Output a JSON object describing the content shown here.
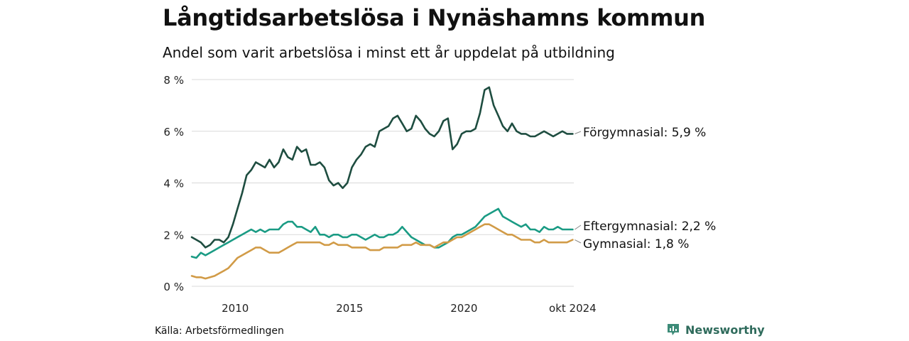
{
  "title": "Långtidsarbetslösa i Nynäshamns kommun",
  "subtitle": "Andel som varit arbetslösa i minst ett år uppdelat på utbildning",
  "source": "Källa: Arbetsförmedlingen",
  "brand": "Newsworthy",
  "chart_data": {
    "type": "line",
    "title": "Långtidsarbetslösa i Nynäshamns kommun",
    "ylabel": "",
    "xlabel": "",
    "xlim": [
      2008.1,
      2024.8
    ],
    "ylim": [
      0,
      8
    ],
    "y_ticks": [
      {
        "value": 0,
        "label": "0 %"
      },
      {
        "value": 2,
        "label": "2 %"
      },
      {
        "value": 4,
        "label": "4 %"
      },
      {
        "value": 6,
        "label": "6 %"
      },
      {
        "value": 8,
        "label": "8 %"
      }
    ],
    "x_ticks": [
      {
        "value": 2010,
        "label": "2010"
      },
      {
        "value": 2015,
        "label": "2015"
      },
      {
        "value": 2020,
        "label": "2020"
      },
      {
        "value": 2024.75,
        "label": "okt 2024"
      }
    ],
    "grid": true,
    "series": [
      {
        "name": "Förgymnasial",
        "end_label": "Förgymnasial: 5,9 %",
        "color": "#1e4d40",
        "x": [
          2008.1,
          2008.3,
          2008.5,
          2008.7,
          2008.9,
          2009.1,
          2009.3,
          2009.5,
          2009.7,
          2009.9,
          2010.1,
          2010.3,
          2010.5,
          2010.7,
          2010.9,
          2011.1,
          2011.3,
          2011.5,
          2011.7,
          2011.9,
          2012.1,
          2012.3,
          2012.5,
          2012.7,
          2012.9,
          2013.1,
          2013.3,
          2013.5,
          2013.7,
          2013.9,
          2014.1,
          2014.3,
          2014.5,
          2014.7,
          2014.9,
          2015.1,
          2015.3,
          2015.5,
          2015.7,
          2015.9,
          2016.1,
          2016.3,
          2016.5,
          2016.7,
          2016.9,
          2017.1,
          2017.3,
          2017.5,
          2017.7,
          2017.9,
          2018.1,
          2018.3,
          2018.5,
          2018.7,
          2018.9,
          2019.1,
          2019.3,
          2019.5,
          2019.7,
          2019.9,
          2020.1,
          2020.3,
          2020.5,
          2020.7,
          2020.9,
          2021.1,
          2021.3,
          2021.5,
          2021.7,
          2021.9,
          2022.1,
          2022.3,
          2022.5,
          2022.7,
          2022.9,
          2023.1,
          2023.3,
          2023.5,
          2023.7,
          2023.9,
          2024.1,
          2024.3,
          2024.5,
          2024.75
        ],
        "values": [
          1.9,
          1.8,
          1.7,
          1.5,
          1.6,
          1.8,
          1.8,
          1.7,
          1.9,
          2.4,
          3.0,
          3.6,
          4.3,
          4.5,
          4.8,
          4.7,
          4.6,
          4.9,
          4.6,
          4.8,
          5.3,
          5.0,
          4.9,
          5.4,
          5.2,
          5.3,
          4.7,
          4.7,
          4.8,
          4.6,
          4.1,
          3.9,
          4.0,
          3.8,
          4.0,
          4.6,
          4.9,
          5.1,
          5.4,
          5.5,
          5.4,
          6.0,
          6.1,
          6.2,
          6.5,
          6.6,
          6.3,
          6.0,
          6.1,
          6.6,
          6.4,
          6.1,
          5.9,
          5.8,
          6.0,
          6.4,
          6.5,
          5.3,
          5.5,
          5.9,
          6.0,
          6.0,
          6.1,
          6.7,
          7.6,
          7.7,
          7.0,
          6.6,
          6.2,
          6.0,
          6.3,
          6.0,
          5.9,
          5.9,
          5.8,
          5.8,
          5.9,
          6.0,
          5.9,
          5.8,
          5.9,
          6.0,
          5.9,
          5.9
        ]
      },
      {
        "name": "Eftergymnasial",
        "end_label": "Eftergymnasial: 2,2 %",
        "color": "#1a9b84",
        "x": [
          2008.1,
          2008.3,
          2008.5,
          2008.7,
          2008.9,
          2009.1,
          2009.3,
          2009.5,
          2009.7,
          2009.9,
          2010.1,
          2010.3,
          2010.5,
          2010.7,
          2010.9,
          2011.1,
          2011.3,
          2011.5,
          2011.7,
          2011.9,
          2012.1,
          2012.3,
          2012.5,
          2012.7,
          2012.9,
          2013.1,
          2013.3,
          2013.5,
          2013.7,
          2013.9,
          2014.1,
          2014.3,
          2014.5,
          2014.7,
          2014.9,
          2015.1,
          2015.3,
          2015.5,
          2015.7,
          2015.9,
          2016.1,
          2016.3,
          2016.5,
          2016.7,
          2016.9,
          2017.1,
          2017.3,
          2017.5,
          2017.7,
          2017.9,
          2018.1,
          2018.3,
          2018.5,
          2018.7,
          2018.9,
          2019.1,
          2019.3,
          2019.5,
          2019.7,
          2019.9,
          2020.1,
          2020.3,
          2020.5,
          2020.7,
          2020.9,
          2021.1,
          2021.3,
          2021.5,
          2021.7,
          2021.9,
          2022.1,
          2022.3,
          2022.5,
          2022.7,
          2022.9,
          2023.1,
          2023.3,
          2023.5,
          2023.7,
          2023.9,
          2024.1,
          2024.3,
          2024.5,
          2024.75
        ],
        "values": [
          1.15,
          1.1,
          1.3,
          1.2,
          1.3,
          1.4,
          1.5,
          1.6,
          1.7,
          1.8,
          1.9,
          2.0,
          2.1,
          2.2,
          2.1,
          2.2,
          2.1,
          2.2,
          2.2,
          2.2,
          2.4,
          2.5,
          2.5,
          2.3,
          2.3,
          2.2,
          2.1,
          2.3,
          2.0,
          2.0,
          1.9,
          2.0,
          2.0,
          1.9,
          1.9,
          2.0,
          2.0,
          1.9,
          1.8,
          1.9,
          2.0,
          1.9,
          1.9,
          2.0,
          2.0,
          2.1,
          2.3,
          2.1,
          1.9,
          1.8,
          1.7,
          1.6,
          1.6,
          1.5,
          1.5,
          1.6,
          1.7,
          1.9,
          2.0,
          2.0,
          2.1,
          2.2,
          2.3,
          2.5,
          2.7,
          2.8,
          2.9,
          3.0,
          2.7,
          2.6,
          2.5,
          2.4,
          2.3,
          2.4,
          2.2,
          2.2,
          2.1,
          2.3,
          2.2,
          2.2,
          2.3,
          2.2,
          2.2,
          2.2
        ]
      },
      {
        "name": "Gymnasial",
        "end_label": "Gymnasial: 1,8 %",
        "color": "#d19b47",
        "x": [
          2008.1,
          2008.3,
          2008.5,
          2008.7,
          2008.9,
          2009.1,
          2009.3,
          2009.5,
          2009.7,
          2009.9,
          2010.1,
          2010.3,
          2010.5,
          2010.7,
          2010.9,
          2011.1,
          2011.3,
          2011.5,
          2011.7,
          2011.9,
          2012.1,
          2012.3,
          2012.5,
          2012.7,
          2012.9,
          2013.1,
          2013.3,
          2013.5,
          2013.7,
          2013.9,
          2014.1,
          2014.3,
          2014.5,
          2014.7,
          2014.9,
          2015.1,
          2015.3,
          2015.5,
          2015.7,
          2015.9,
          2016.1,
          2016.3,
          2016.5,
          2016.7,
          2016.9,
          2017.1,
          2017.3,
          2017.5,
          2017.7,
          2017.9,
          2018.1,
          2018.3,
          2018.5,
          2018.7,
          2018.9,
          2019.1,
          2019.3,
          2019.5,
          2019.7,
          2019.9,
          2020.1,
          2020.3,
          2020.5,
          2020.7,
          2020.9,
          2021.1,
          2021.3,
          2021.5,
          2021.7,
          2021.9,
          2022.1,
          2022.3,
          2022.5,
          2022.7,
          2022.9,
          2023.1,
          2023.3,
          2023.5,
          2023.7,
          2023.9,
          2024.1,
          2024.3,
          2024.5,
          2024.75
        ],
        "values": [
          0.4,
          0.35,
          0.35,
          0.3,
          0.35,
          0.4,
          0.5,
          0.6,
          0.7,
          0.9,
          1.1,
          1.2,
          1.3,
          1.4,
          1.5,
          1.5,
          1.4,
          1.3,
          1.3,
          1.3,
          1.4,
          1.5,
          1.6,
          1.7,
          1.7,
          1.7,
          1.7,
          1.7,
          1.7,
          1.6,
          1.6,
          1.7,
          1.6,
          1.6,
          1.6,
          1.5,
          1.5,
          1.5,
          1.5,
          1.4,
          1.4,
          1.4,
          1.5,
          1.5,
          1.5,
          1.5,
          1.6,
          1.6,
          1.6,
          1.7,
          1.6,
          1.6,
          1.6,
          1.5,
          1.6,
          1.7,
          1.7,
          1.8,
          1.9,
          1.9,
          2.0,
          2.1,
          2.2,
          2.3,
          2.4,
          2.4,
          2.3,
          2.2,
          2.1,
          2.0,
          2.0,
          1.9,
          1.8,
          1.8,
          1.8,
          1.7,
          1.7,
          1.8,
          1.7,
          1.7,
          1.7,
          1.7,
          1.7,
          1.8
        ]
      }
    ]
  }
}
